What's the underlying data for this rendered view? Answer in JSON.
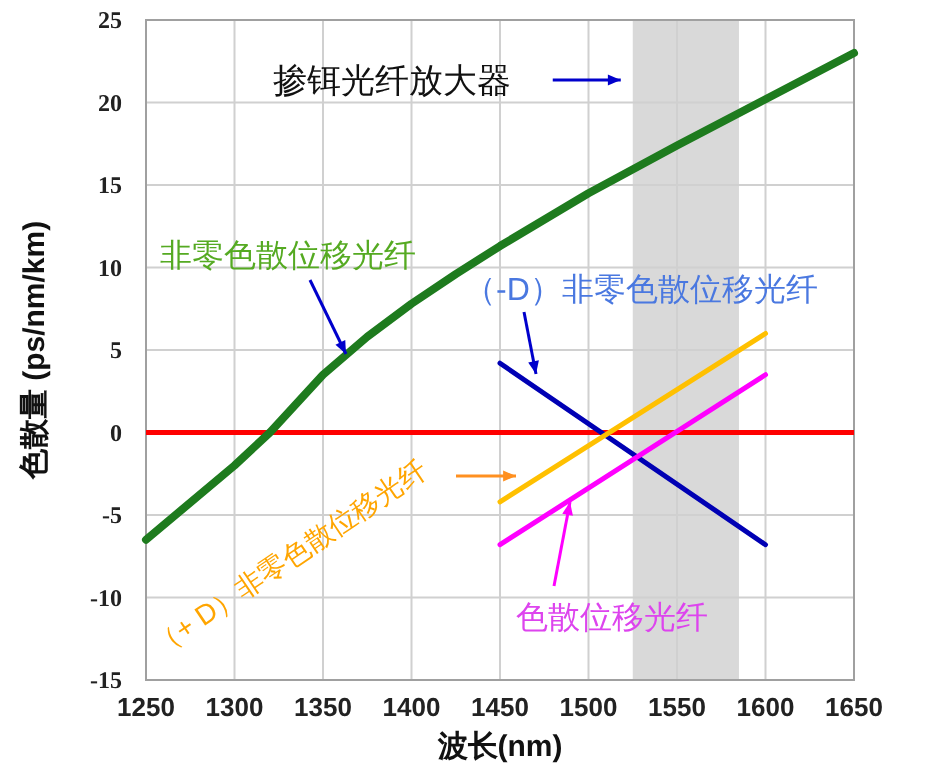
{
  "chart_data": {
    "type": "line",
    "xlabel": "波长(nm)",
    "ylabel": "色散量 (ps/nm/km)",
    "xlim": [
      1250,
      1650
    ],
    "xticks": [
      1250,
      1300,
      1350,
      1400,
      1450,
      1500,
      1550,
      1600,
      1650
    ],
    "ylim": [
      -15,
      25
    ],
    "yticks": [
      -15,
      -10,
      -5,
      0,
      5,
      10,
      15,
      20,
      25
    ],
    "grid": true,
    "series": [
      {
        "name": "非零色散位移光纤",
        "color": "#1e7b1e",
        "x": [
          1250,
          1300,
          1320,
          1350,
          1375,
          1400,
          1425,
          1450,
          1500,
          1550,
          1600,
          1650
        ],
        "values": [
          -6.5,
          -2,
          0,
          3.5,
          5.8,
          7.8,
          9.6,
          11.3,
          14.5,
          17.4,
          20.2,
          23
        ]
      },
      {
        "name": "（-D）非零色散位移光纤",
        "color": "#0000b4",
        "x": [
          1450,
          1600
        ],
        "values": [
          4.2,
          -6.8
        ]
      },
      {
        "name": "（+ D）非零色散位移光纤",
        "color": "#ffc000",
        "x": [
          1450,
          1600
        ],
        "values": [
          -4.2,
          6
        ]
      },
      {
        "name": "色散位移光纤",
        "color": "#ff00ff",
        "x": [
          1450,
          1600
        ],
        "values": [
          -6.8,
          3.5
        ]
      }
    ],
    "ref_lines": [
      {
        "axis": "y",
        "value": 0,
        "color": "#ff0000"
      }
    ],
    "bands": [
      {
        "axis": "x",
        "from": 1525,
        "to": 1585,
        "label": "掺铒光纤放大器",
        "color": "#d9d9d9"
      }
    ]
  }
}
